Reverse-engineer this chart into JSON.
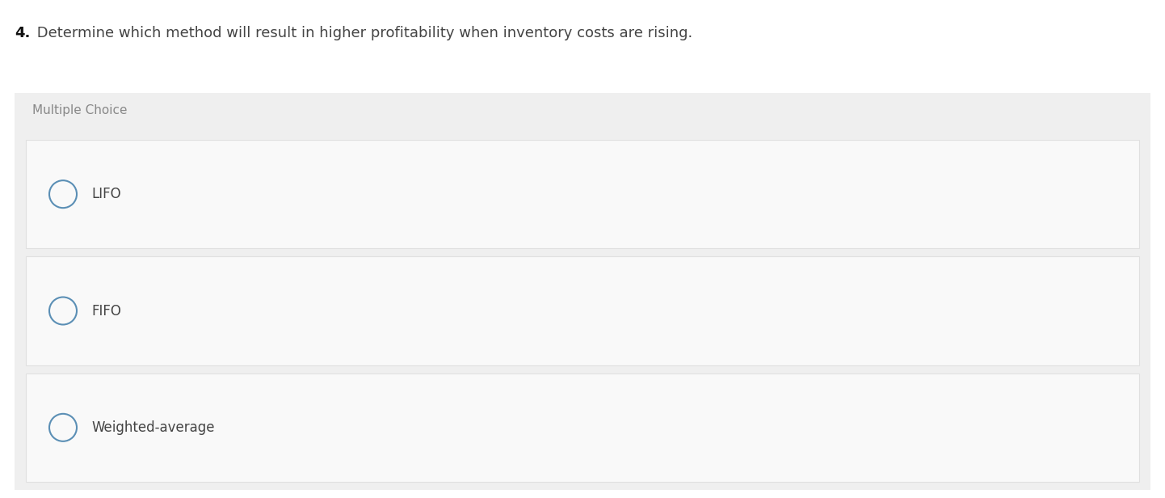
{
  "question_number": "4.",
  "question_text": " Determine which method will result in higher profitability when inventory costs are rising.",
  "section_label": "Multiple Choice",
  "choices": [
    "LIFO",
    "FIFO",
    "Weighted-average"
  ],
  "bg_color": "#ffffff",
  "panel_bg": "#efefef",
  "choice_bg": "#f9f9f9",
  "choice_border": "#e0e0e0",
  "circle_edge": "#5b8fb5",
  "text_color": "#444444",
  "label_color": "#888888",
  "question_number_color": "#111111",
  "question_text_color": "#444444",
  "title_fontsize": 13,
  "choice_fontsize": 12,
  "label_fontsize": 11,
  "fig_width": 14.42,
  "fig_height": 6.16,
  "dpi": 100
}
